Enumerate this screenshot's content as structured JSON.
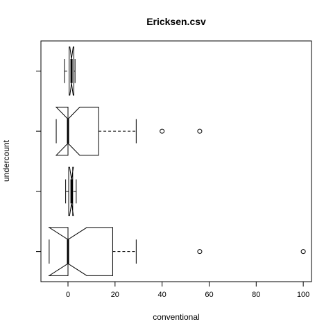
{
  "chart_data": {
    "type": "boxplot",
    "orientation": "horizontal",
    "notched": true,
    "title": "Ericksen.csv",
    "xlabel": "conventional",
    "ylabel": "undercount",
    "xlim": [
      -11.5,
      103.5
    ],
    "x_ticks": [
      0,
      20,
      40,
      60,
      80,
      100
    ],
    "x_tick_labels": [
      "0",
      "20",
      "40",
      "60",
      "80",
      "100"
    ],
    "y_tick_labels": [
      "",
      "",
      "",
      ""
    ],
    "groups": [
      {
        "position": 1,
        "lower_whisker": -8,
        "q1": 0,
        "median": 0,
        "q3": 19,
        "upper_whisker": 29,
        "notch_low": -8,
        "notch_high": 8,
        "outliers": [
          56,
          100
        ]
      },
      {
        "position": 2,
        "lower_whisker": -1,
        "q1": 0.3,
        "median": 1.5,
        "q3": 2,
        "upper_whisker": 3.5,
        "notch_low": 0.7,
        "notch_high": 2.3,
        "outliers": []
      },
      {
        "position": 3,
        "lower_whisker": -5,
        "q1": 0,
        "median": 0,
        "q3": 13,
        "upper_whisker": 29,
        "notch_low": -5,
        "notch_high": 5,
        "outliers": [
          40,
          56
        ]
      },
      {
        "position": 4,
        "lower_whisker": -1.5,
        "q1": 0.5,
        "median": 1.5,
        "q3": 2.5,
        "upper_whisker": 3,
        "notch_low": 0.8,
        "notch_high": 2.2,
        "outliers": []
      }
    ],
    "grid": false,
    "legend": "none"
  }
}
